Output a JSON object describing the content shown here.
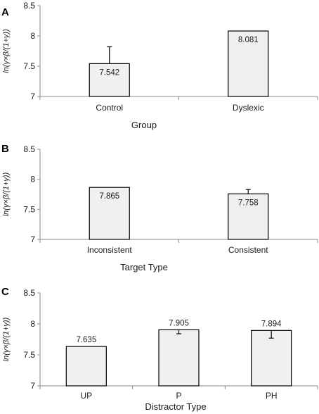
{
  "chart_data": [
    {
      "type": "bar",
      "panel": "A",
      "categories": [
        "Control",
        "Dyslexic"
      ],
      "values": [
        7.542,
        8.081
      ],
      "error_upper": [
        7.82,
        null
      ],
      "data_labels": [
        "7.542",
        "8.081"
      ],
      "xlabel": "Group",
      "ylabel": "ln(γ×β/(1+γ))",
      "ylim": [
        7,
        8.5
      ],
      "yticks": [
        "7",
        "7.5",
        "8",
        "8.5"
      ]
    },
    {
      "type": "bar",
      "panel": "B",
      "categories": [
        "Inconsistent",
        "Consistent"
      ],
      "values": [
        7.865,
        7.758
      ],
      "error_upper": [
        null,
        7.83
      ],
      "data_labels": [
        "7.865",
        "7.758"
      ],
      "xlabel": "Target Type",
      "ylabel": "ln(γ×β/(1+γ))",
      "ylim": [
        7,
        8.5
      ],
      "yticks": [
        "7",
        "7.5",
        "8",
        "8.5"
      ]
    },
    {
      "type": "bar",
      "panel": "C",
      "categories": [
        "UP",
        "P",
        "PH"
      ],
      "values": [
        7.635,
        7.905,
        7.894
      ],
      "error_lower": [
        null,
        7.84,
        7.77
      ],
      "data_labels": [
        "7.635",
        "7.905",
        "7.894"
      ],
      "xlabel": "Distractor Type",
      "ylabel": "ln(γ×β/(1+γ))",
      "ylim": [
        7,
        8.5
      ],
      "yticks": [
        "7",
        "7.5",
        "8",
        "8.5"
      ]
    }
  ],
  "style": {
    "bar_fill": "#f0f0f0",
    "bar_stroke": "#000000",
    "axis_color": "#8a8a8a"
  }
}
